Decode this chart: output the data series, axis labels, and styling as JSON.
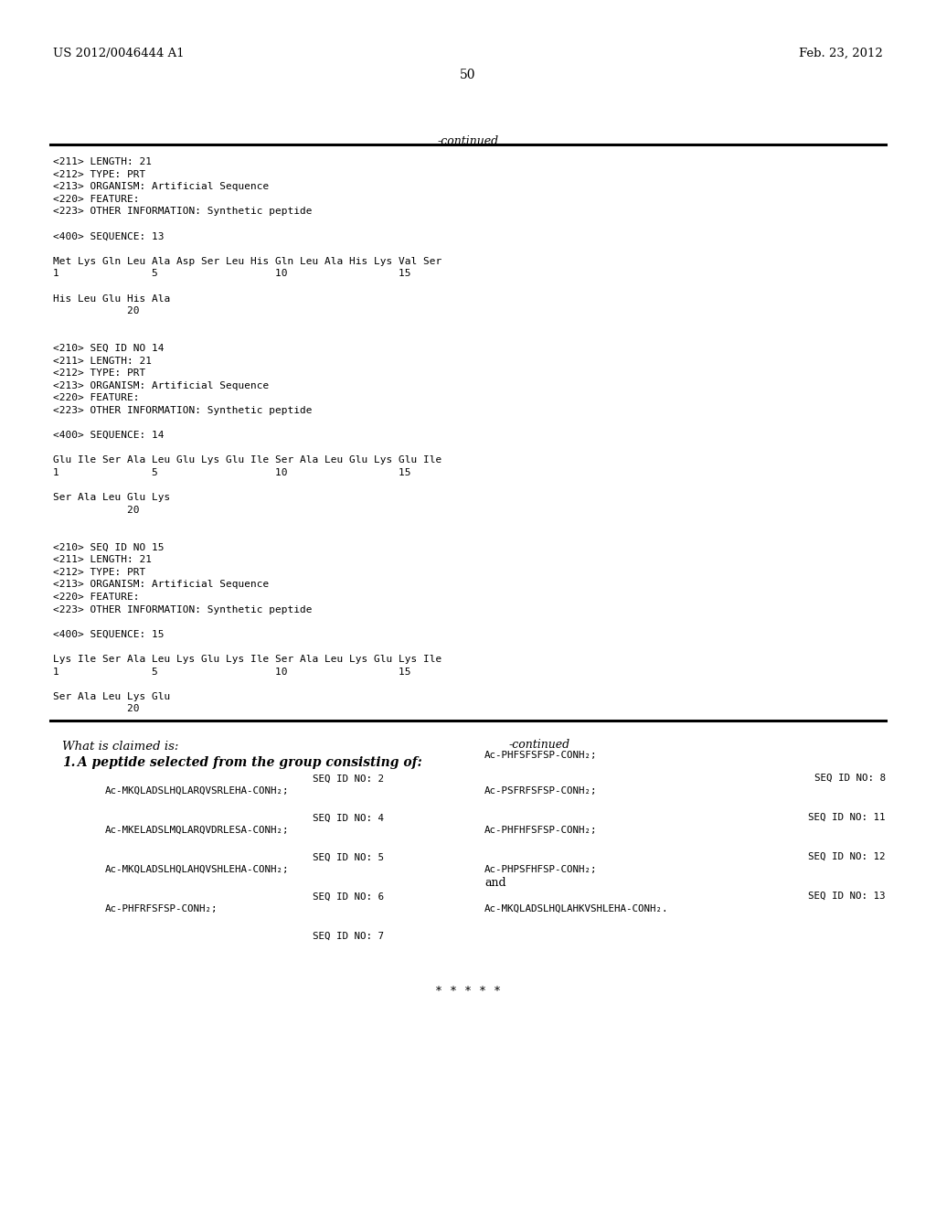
{
  "bg_color": "#ffffff",
  "header_left": "US 2012/0046444 A1",
  "header_right": "Feb. 23, 2012",
  "page_number": "50",
  "top_continued": "-continued",
  "top_section_lines": [
    "<211> LENGTH: 21",
    "<212> TYPE: PRT",
    "<213> ORGANISM: Artificial Sequence",
    "<220> FEATURE:",
    "<223> OTHER INFORMATION: Synthetic peptide",
    "",
    "<400> SEQUENCE: 13",
    "",
    "Met Lys Gln Leu Ala Asp Ser Leu His Gln Leu Ala His Lys Val Ser",
    "1               5                   10                  15",
    "",
    "His Leu Glu His Ala",
    "            20",
    "",
    "",
    "<210> SEQ ID NO 14",
    "<211> LENGTH: 21",
    "<212> TYPE: PRT",
    "<213> ORGANISM: Artificial Sequence",
    "<220> FEATURE:",
    "<223> OTHER INFORMATION: Synthetic peptide",
    "",
    "<400> SEQUENCE: 14",
    "",
    "Glu Ile Ser Ala Leu Glu Lys Glu Ile Ser Ala Leu Glu Lys Glu Ile",
    "1               5                   10                  15",
    "",
    "Ser Ala Leu Glu Lys",
    "            20",
    "",
    "",
    "<210> SEQ ID NO 15",
    "<211> LENGTH: 21",
    "<212> TYPE: PRT",
    "<213> ORGANISM: Artificial Sequence",
    "<220> FEATURE:",
    "<223> OTHER INFORMATION: Synthetic peptide",
    "",
    "<400> SEQUENCE: 15",
    "",
    "Lys Ile Ser Ala Leu Lys Glu Lys Ile Ser Ala Leu Lys Glu Lys Ile",
    "1               5                   10                  15",
    "",
    "Ser Ala Leu Lys Glu",
    "            20"
  ],
  "claims_header": "What is claimed is:",
  "claim1_num": "1.",
  "claim1_text": " A peptide selected from the group consisting of:",
  "right_continued": "-continued",
  "right_continued_pep": "Ac-PHFSFSFSP-CONH₂;",
  "left_entries": [
    {
      "seq": "SEQ ID NO: 2",
      "pep": "Ac-MKQLADSLHQLARQVSRLEHA-CONH₂;"
    },
    {
      "seq": "SEQ ID NO: 4",
      "pep": "Ac-MKELADSLMQLARQVDRLESA-CONH₂;"
    },
    {
      "seq": "SEQ ID NO: 5",
      "pep": "Ac-MKQLADSLHQLAHQVSHLEHA-CONH₂;"
    },
    {
      "seq": "SEQ ID NO: 6",
      "pep": "Ac-PHFRFSFSP-CONH₂;"
    },
    {
      "seq": "SEQ ID NO: 7",
      "pep": ""
    }
  ],
  "right_entries": [
    {
      "seq": "SEQ ID NO: 8",
      "pep": "Ac-PSFRFSFSP-CONH₂;",
      "extra": ""
    },
    {
      "seq": "SEQ ID NO: 11",
      "pep": "Ac-PHFHFSFSP-CONH₂;",
      "extra": ""
    },
    {
      "seq": "SEQ ID NO: 12",
      "pep": "Ac-PHPSFHFSP-CONH₂;",
      "extra": "and"
    },
    {
      "seq": "SEQ ID NO: 13",
      "pep": "Ac-MKQLADSLHQLAHKVSHLEHA-CONH₂.",
      "extra": ""
    }
  ],
  "end_marks": "* * * * *"
}
